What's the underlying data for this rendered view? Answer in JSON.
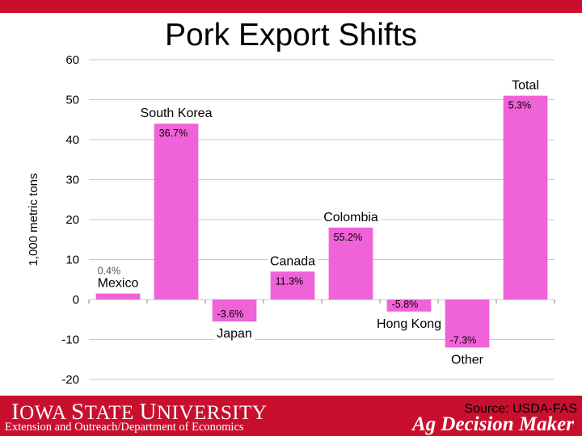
{
  "slide": {
    "title": "Pork Export Shifts"
  },
  "footer": {
    "logo_text": "Iowa State University",
    "logo_first_I": "I",
    "logo_rest1": "OWA ",
    "logo_S": "S",
    "logo_rest2": "TATE ",
    "logo_U": "U",
    "logo_rest3": "NIVERSITY",
    "department": "Extension and Outreach/Department of Economics",
    "brand": "Ag Decision Maker",
    "source": "Source: USDA-FAS"
  },
  "colors": {
    "bar": "#f062d8",
    "brand_red": "#c8102e",
    "grid": "#c8c8c8"
  },
  "chart_data": {
    "type": "bar",
    "title": "Pork Export Shifts",
    "ylabel": "1,000 metric tons",
    "ylim": [
      -20,
      60
    ],
    "yticks": [
      -20,
      -10,
      0,
      10,
      20,
      30,
      40,
      50,
      60
    ],
    "grid": true,
    "categories": [
      "Mexico",
      "South Korea",
      "Japan",
      "Canada",
      "Colombia",
      "Hong Kong",
      "Other",
      "Total"
    ],
    "values": [
      1.5,
      44,
      -5.5,
      7,
      18,
      -3,
      -12,
      51
    ],
    "data_labels": [
      "0.4%",
      "36.7%",
      "-3.6%",
      "11.3%",
      "55.2%",
      "-5.8%",
      "-7.3%",
      "5.3%"
    ]
  }
}
